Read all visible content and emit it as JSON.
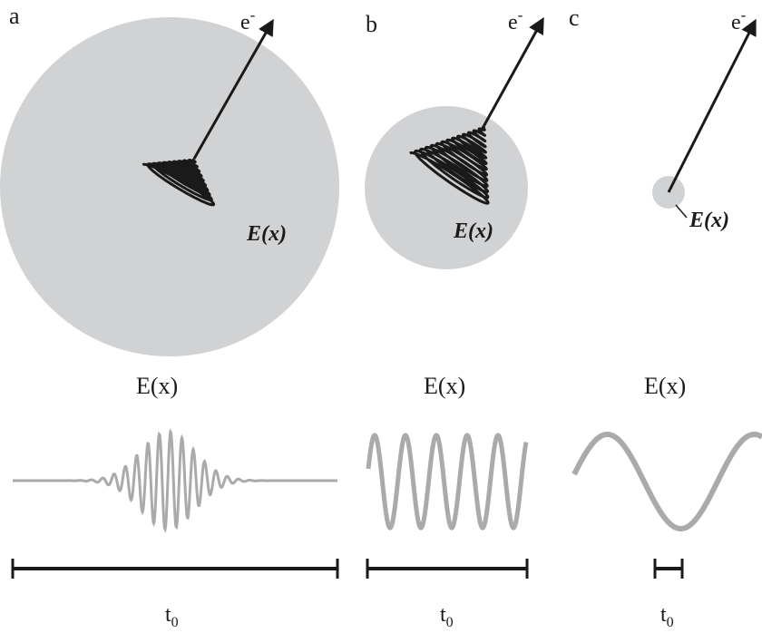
{
  "panels": [
    {
      "letter": "a",
      "electron_label": "e",
      "electron_superscript": "-",
      "field_label": "E(x)",
      "plot_title": "E(x)",
      "time_label": "t",
      "time_subscript": "0"
    },
    {
      "letter": "b",
      "electron_label": "e",
      "electron_superscript": "-",
      "field_label": "E(x)",
      "plot_title": "E(x)",
      "time_label": "t",
      "time_subscript": "0"
    },
    {
      "letter": "c",
      "electron_label": "e",
      "electron_superscript": "-",
      "field_label": "E(x)",
      "plot_title": "E(x)",
      "time_label": "t",
      "time_subscript": "0"
    }
  ],
  "colors": {
    "field_region": "#d1d2d4",
    "waveform": "#a9aaac",
    "arrow": "#1a1a1a",
    "bar": "#1a1a1a"
  }
}
